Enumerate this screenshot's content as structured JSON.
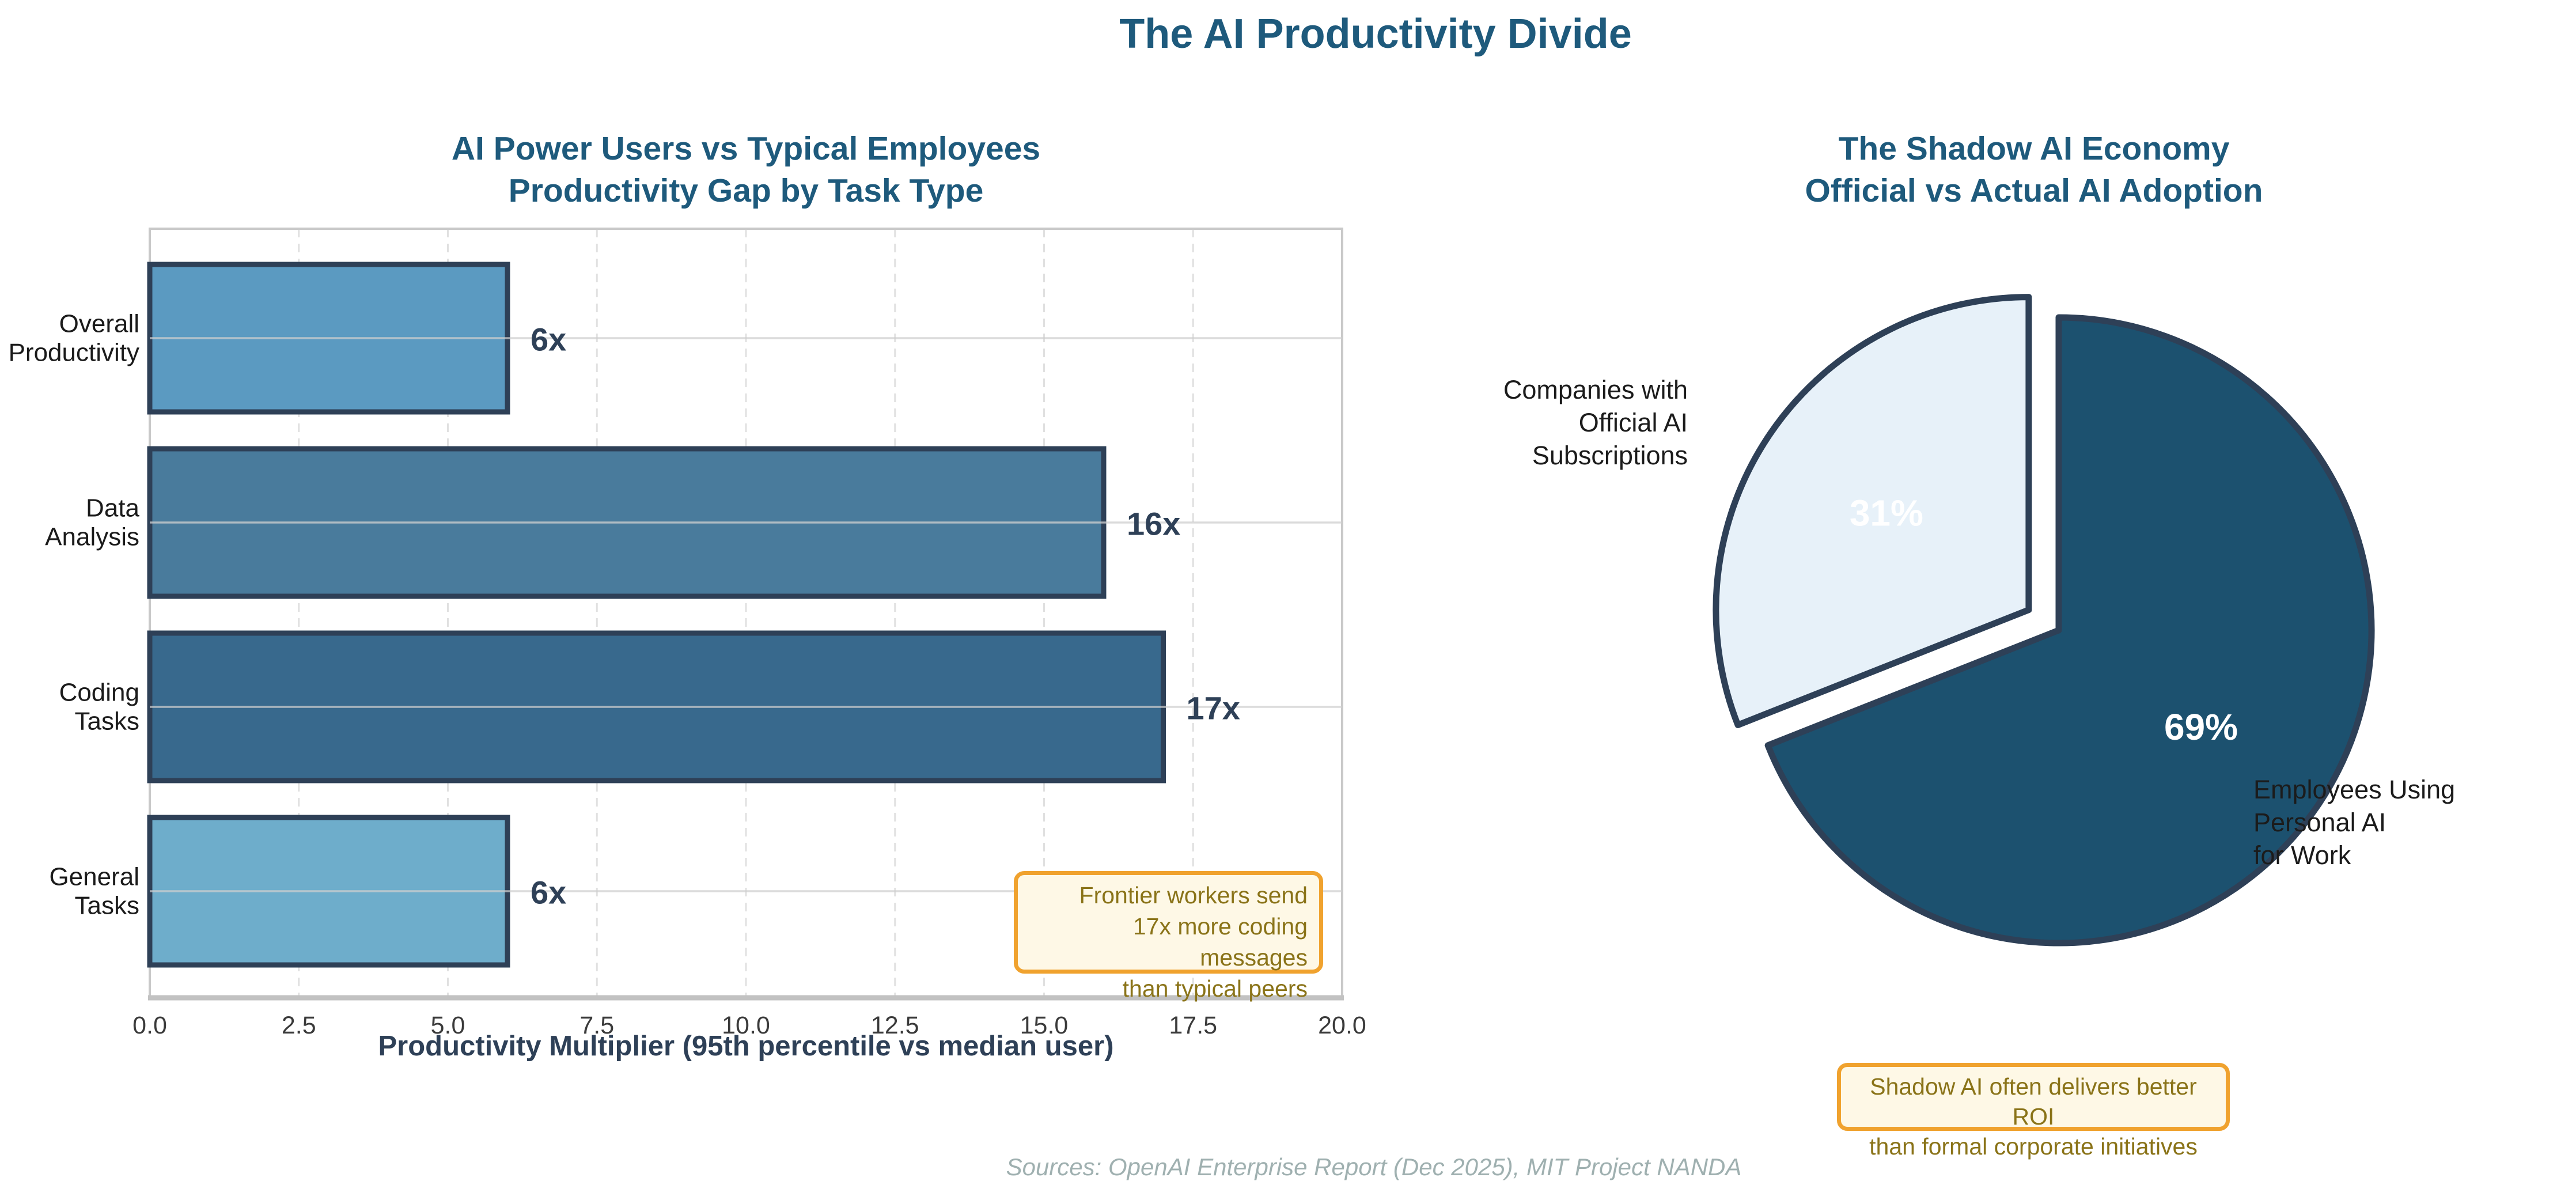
{
  "figure": {
    "title": "The AI Productivity Divide",
    "source_note": "Sources: OpenAI Enterprise Report (Dec 2025), MIT Project NANDA"
  },
  "colors": {
    "title": "#1e5a7c",
    "dark_navy": "#2e4057",
    "tick": "#3a3a3a",
    "text": "#1b1b1b",
    "frame": "#c9c9c9",
    "bottom_spine": "#c2c2c2",
    "grid_dash": "#e0e0e0",
    "grid_solid": "#cfcfcf",
    "pct_label": "#ffffff",
    "annotation_bg": "#fef8e6",
    "annotation_border": "#f0a22e",
    "annotation_text": "#8a7318"
  },
  "chart_data": [
    {
      "type": "bar",
      "orientation": "horizontal",
      "title": "AI Power Users vs Typical Employees\nProductivity Gap by Task Type",
      "categories": [
        "Overall\nProductivity",
        "Data\nAnalysis",
        "Coding\nTasks",
        "General\nTasks"
      ],
      "values": [
        6,
        16,
        17,
        6
      ],
      "value_labels": [
        "6x",
        "16x",
        "17x",
        "6x"
      ],
      "xlabel": "Productivity Multiplier (95th percentile vs median user)",
      "xlim": [
        0,
        20
      ],
      "xticks": [
        0,
        2.5,
        5,
        7.5,
        10,
        12.5,
        15,
        17.5,
        20
      ],
      "xtick_labels": [
        "0.0",
        "2.5",
        "5.0",
        "7.5",
        "10.0",
        "12.5",
        "15.0",
        "17.5",
        "20.0"
      ],
      "bar_colors": [
        "#5b9ac1",
        "#497b9c",
        "#38698d",
        "#6eadcb"
      ],
      "bar_edge_color": "#2e4057",
      "grid": true,
      "annotation": {
        "text": "Frontier workers send\n17x more coding messages\nthan typical peers"
      }
    },
    {
      "type": "pie",
      "title": "The Shadow AI Economy\nOfficial vs Actual AI Adoption",
      "start_angle": 90,
      "counterclockwise": true,
      "edge_color": "#2e4057",
      "slices": [
        {
          "label": "Companies with\nOfficial AI\nSubscriptions",
          "value": 31,
          "pct_label": "31%",
          "color": "#e7f1f9",
          "exploded": true
        },
        {
          "label": "Employees Using\nPersonal AI\nfor Work",
          "value": 69,
          "pct_label": "69%",
          "color": "#1c516f",
          "exploded": false
        }
      ],
      "annotation": {
        "text": "Shadow AI often delivers better ROI\nthan formal corporate initiatives"
      }
    }
  ]
}
